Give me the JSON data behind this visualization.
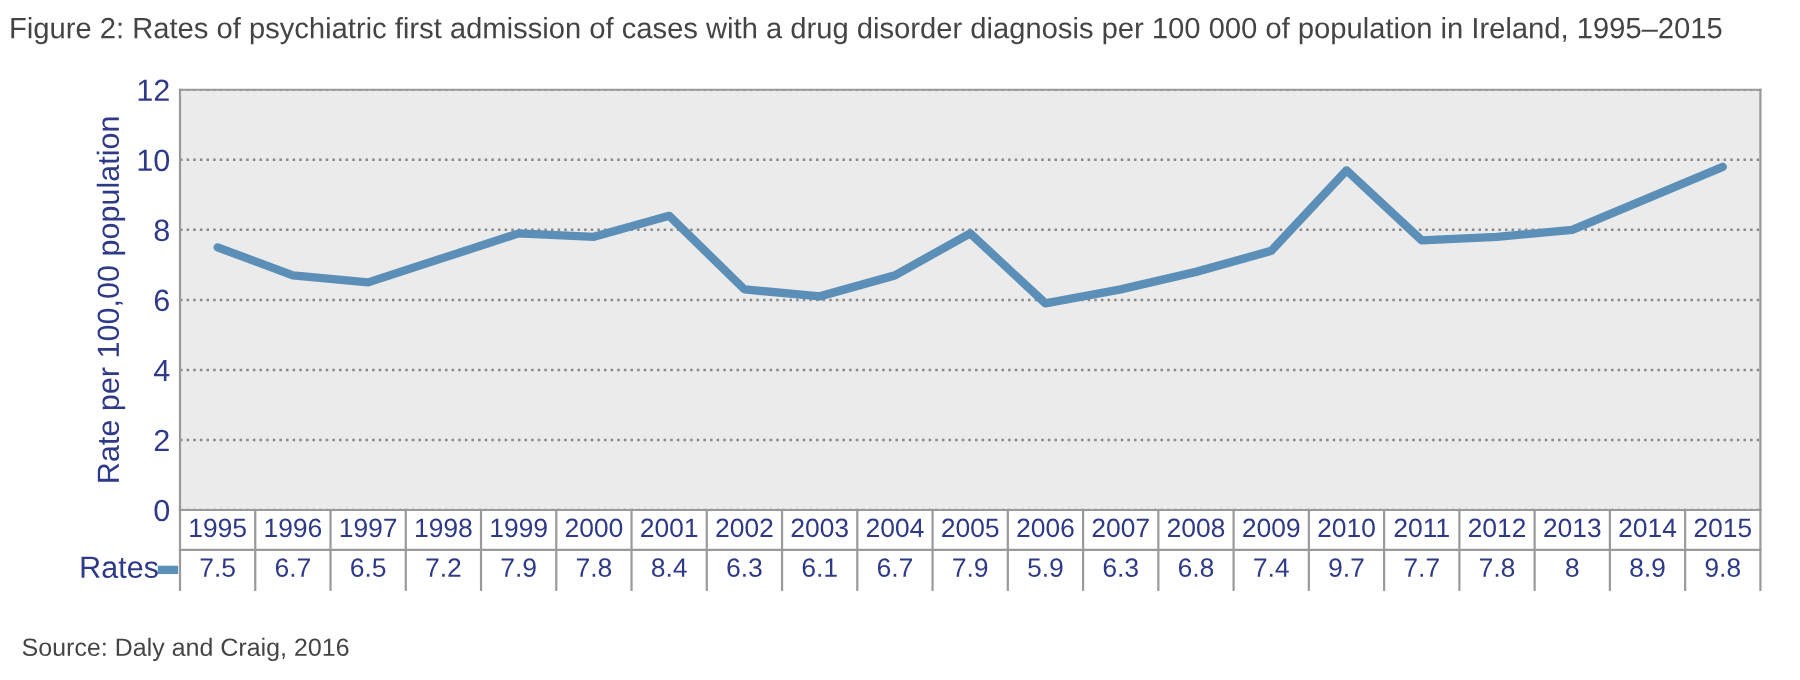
{
  "chart_data": {
    "type": "line",
    "title": "Figure 2: Rates of psychiatric first admission of cases with a drug disorder diagnosis per 100 000 of population in Ireland, 1995–2015",
    "ylabel": "Rate per 100,00 population",
    "categories": [
      "1995",
      "1996",
      "1997",
      "1998",
      "1999",
      "2000",
      "2001",
      "2002",
      "2003",
      "2004",
      "2005",
      "2006",
      "2007",
      "2008",
      "2009",
      "2010",
      "2011",
      "2012",
      "2013",
      "2014",
      "2015"
    ],
    "series": [
      {
        "name": "Rates",
        "color": "#5b8fb8",
        "values": [
          7.5,
          6.7,
          6.5,
          7.2,
          7.9,
          7.8,
          8.4,
          6.3,
          6.1,
          6.7,
          7.9,
          5.9,
          6.3,
          6.8,
          7.4,
          9.7,
          7.7,
          7.8,
          8,
          8.9,
          9.8
        ]
      }
    ],
    "ylim": [
      0,
      12
    ],
    "yticks": [
      0,
      2,
      4,
      6,
      8,
      10,
      12
    ],
    "grid": "y",
    "data_labels": true,
    "legend": "bottom left",
    "annotations": [
      "Source: Daly and Craig, 2016"
    ]
  }
}
